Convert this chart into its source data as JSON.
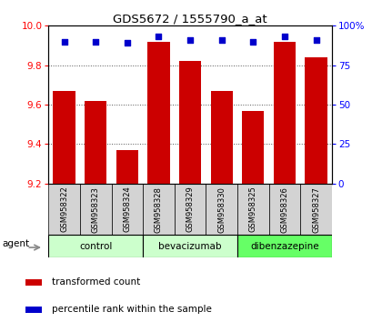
{
  "title": "GDS5672 / 1555790_a_at",
  "samples": [
    "GSM958322",
    "GSM958323",
    "GSM958324",
    "GSM958328",
    "GSM958329",
    "GSM958330",
    "GSM958325",
    "GSM958326",
    "GSM958327"
  ],
  "transformed_counts": [
    9.67,
    9.62,
    9.37,
    9.92,
    9.82,
    9.67,
    9.57,
    9.92,
    9.84
  ],
  "percentile_ranks": [
    90,
    90,
    89,
    93,
    91,
    91,
    90,
    93,
    91
  ],
  "ylim_left": [
    9.2,
    10.0
  ],
  "ylim_right": [
    0,
    100
  ],
  "yticks_left": [
    9.2,
    9.4,
    9.6,
    9.8,
    10.0
  ],
  "yticks_right": [
    0,
    25,
    50,
    75,
    100
  ],
  "bar_color": "#cc0000",
  "dot_color": "#0000cc",
  "groups": [
    {
      "label": "control",
      "indices": [
        0,
        1,
        2
      ],
      "color": "#ccffcc"
    },
    {
      "label": "bevacizumab",
      "indices": [
        3,
        4,
        5
      ],
      "color": "#ccffcc"
    },
    {
      "label": "dibenzazepine",
      "indices": [
        6,
        7,
        8
      ],
      "color": "#66ff66"
    }
  ],
  "legend_bar_color": "#cc0000",
  "legend_dot_color": "#0000cc",
  "legend_bar_label": "transformed count",
  "legend_dot_label": "percentile rank within the sample",
  "agent_label": "agent",
  "bar_bottom": 9.2,
  "cell_color": "#d3d3d3",
  "grid_color": "#555555"
}
